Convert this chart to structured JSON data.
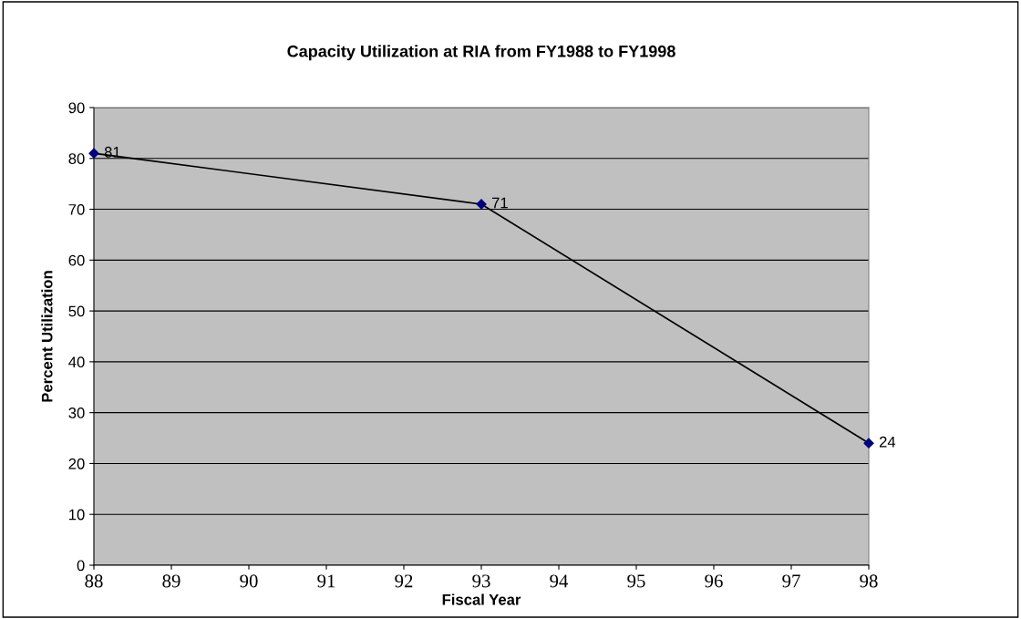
{
  "chart_data": {
    "type": "line",
    "title": "Capacity Utilization at RIA from FY1988 to FY1998",
    "xlabel": "Fiscal Year",
    "ylabel": "Percent Utilization",
    "x": [
      88,
      93,
      98
    ],
    "series": [
      {
        "color": "#000080",
        "values": [
          81,
          71,
          24
        ]
      }
    ],
    "xlim": [
      88,
      98
    ],
    "xticks": [
      88,
      89,
      90,
      91,
      92,
      93,
      94,
      95,
      96,
      97,
      98
    ],
    "ylim": [
      0,
      90
    ],
    "yticks": [
      0,
      10,
      20,
      30,
      40,
      50,
      60,
      70,
      80,
      90
    ],
    "grid": "y",
    "marker": "diamond",
    "line_style": "solid",
    "data_labels": true
  }
}
